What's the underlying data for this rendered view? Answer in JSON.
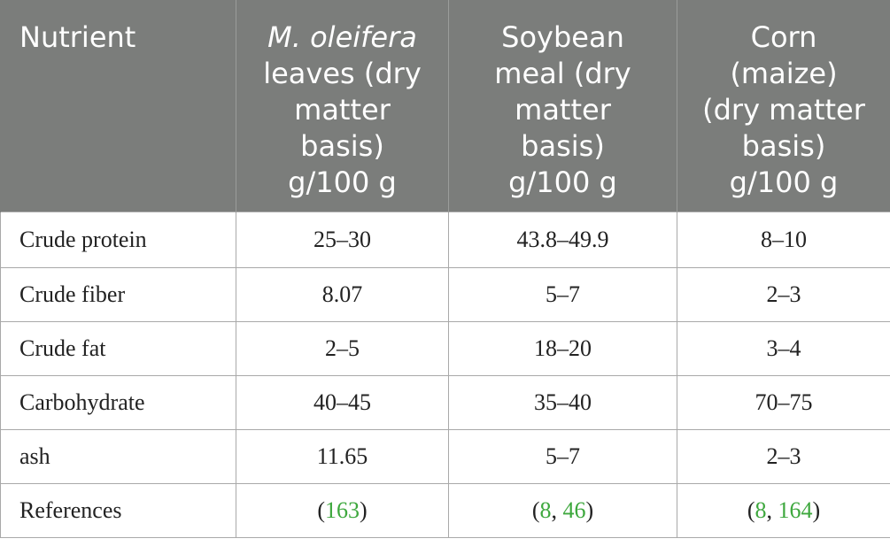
{
  "colors": {
    "header_bg": "#7b7d7b",
    "header_text": "#ffffff",
    "link": "#3ea83e",
    "border": "#a9a9a9"
  },
  "header": {
    "col1": "Nutrient",
    "col2_italic": "M. oleifera",
    "col2_lines": [
      "leaves (dry",
      "matter",
      "basis)",
      "g/100 g"
    ],
    "col3_lines": [
      "Soybean",
      "meal (dry",
      "matter",
      "basis)",
      "g/100 g"
    ],
    "col4_lines": [
      "Corn",
      "(maize)",
      "(dry matter",
      "basis)",
      "g/100 g"
    ]
  },
  "rows": [
    {
      "nutrient": "Crude protein",
      "moringa": "25–30",
      "soybean": "43.8–49.9",
      "corn": "8–10"
    },
    {
      "nutrient": "Crude fiber",
      "moringa": "8.07",
      "soybean": "5–7",
      "corn": "2–3"
    },
    {
      "nutrient": "Crude fat",
      "moringa": "2–5",
      "soybean": "18–20",
      "corn": "3–4"
    },
    {
      "nutrient": "Carbohydrate",
      "moringa": "40–45",
      "soybean": "35–40",
      "corn": "70–75"
    },
    {
      "nutrient": "ash",
      "moringa": "11.65",
      "soybean": "5–7",
      "corn": "2–3"
    }
  ],
  "references": {
    "label": "References",
    "moringa": {
      "open": "(",
      "refs": [
        "163"
      ],
      "sep": ", ",
      "close": ")"
    },
    "soybean": {
      "open": "(",
      "refs": [
        "8",
        "46"
      ],
      "sep": ", ",
      "close": ")"
    },
    "corn": {
      "open": "(",
      "refs": [
        "8",
        "164"
      ],
      "sep": ", ",
      "close": ")"
    }
  }
}
